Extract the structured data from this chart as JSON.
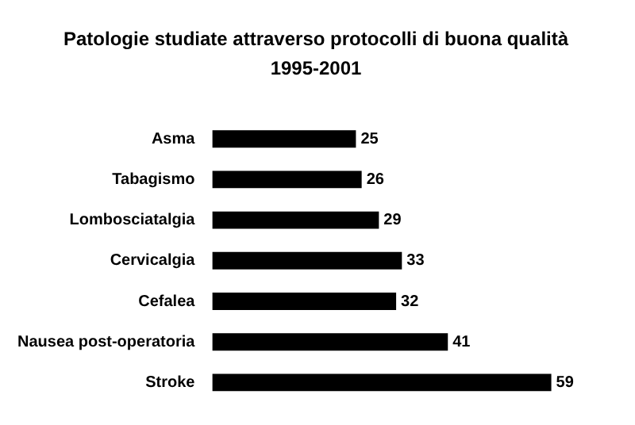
{
  "chart_data": {
    "type": "bar",
    "orientation": "horizontal",
    "title": "Patologie studiate attraverso protocolli di buona qualità",
    "subtitle": "1995-2001",
    "categories": [
      "Asma",
      "Tabagismo",
      "Lombosciatalgia",
      "Cervicalgia",
      "Cefalea",
      "Nausea post-operatoria",
      "Stroke"
    ],
    "values": [
      25,
      26,
      29,
      33,
      32,
      41,
      59
    ],
    "color": "#000000",
    "data_labels": true
  }
}
